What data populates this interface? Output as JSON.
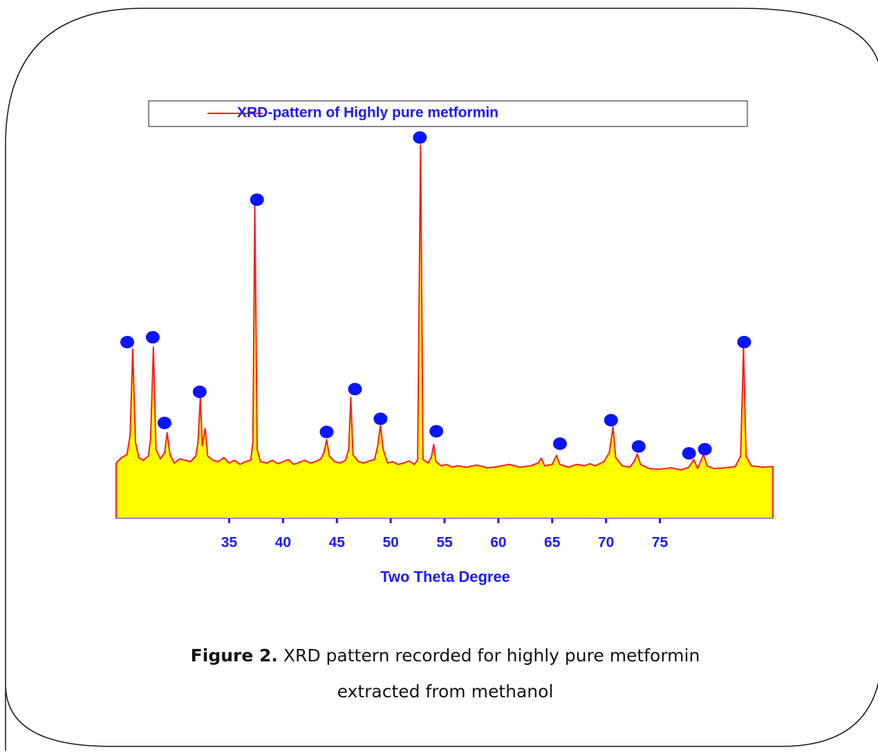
{
  "chart_data": {
    "type": "line",
    "legend_label": "XRD-pattern of Highly pure metformin",
    "x_label": "Two Theta Degree",
    "xlim": [
      24.5,
      85.5
    ],
    "xticks": [
      35,
      40,
      45,
      50,
      55,
      60,
      65,
      70,
      75
    ],
    "ylim": [
      0,
      560
    ],
    "fill_color": "#ffff00",
    "series": [
      {
        "name": "XRD-pattern of Highly pure metformin",
        "color": "#ff1a1a",
        "x": [
          24.5,
          25.0,
          25.5,
          25.8,
          26.04,
          26.3,
          26.6,
          27.0,
          27.5,
          27.7,
          27.96,
          28.2,
          28.6,
          29.0,
          29.24,
          29.5,
          29.9,
          30.4,
          30.9,
          31.4,
          31.9,
          32.1,
          32.32,
          32.5,
          32.77,
          33.0,
          33.5,
          34.0,
          34.5,
          35.0,
          35.5,
          36.0,
          36.5,
          37.0,
          37.2,
          37.38,
          37.6,
          37.9,
          38.5,
          39.0,
          39.5,
          40.0,
          40.5,
          41.0,
          41.5,
          42.0,
          42.5,
          43.0,
          43.5,
          43.8,
          44.05,
          44.3,
          44.8,
          45.3,
          45.8,
          46.1,
          46.29,
          46.5,
          47.0,
          47.5,
          48.0,
          48.5,
          48.8,
          49.05,
          49.3,
          49.7,
          50.2,
          50.7,
          51.2,
          51.7,
          52.2,
          52.5,
          52.77,
          53.0,
          53.5,
          53.8,
          53.99,
          54.2,
          54.7,
          55.2,
          55.7,
          56.2,
          57.0,
          58.0,
          59.0,
          60.0,
          61.0,
          62.0,
          63.0,
          63.7,
          63.99,
          64.3,
          65.0,
          65.4,
          65.7,
          66.5,
          67.3,
          68.0,
          68.5,
          69.0,
          69.8,
          70.3,
          70.65,
          70.9,
          71.5,
          72.2,
          72.6,
          72.9,
          73.2,
          74.0,
          75.0,
          76.0,
          77.0,
          77.7,
          78.15,
          78.5,
          79.05,
          79.4,
          80.0,
          81.0,
          82.0,
          82.5,
          82.77,
          83.0,
          83.5,
          84.5,
          85.5
        ],
        "values": [
          80,
          88,
          92,
          120,
          245,
          110,
          88,
          84,
          90,
          115,
          248,
          100,
          86,
          95,
          124,
          92,
          80,
          86,
          84,
          82,
          90,
          110,
          175,
          105,
          130,
          90,
          84,
          82,
          88,
          80,
          84,
          78,
          82,
          84,
          110,
          455,
          100,
          82,
          80,
          84,
          79,
          82,
          85,
          78,
          81,
          84,
          80,
          82,
          86,
          95,
          114,
          90,
          82,
          80,
          84,
          100,
          175,
          92,
          82,
          80,
          83,
          85,
          105,
          135,
          100,
          80,
          82,
          78,
          80,
          83,
          78,
          85,
          540,
          85,
          80,
          90,
          107,
          82,
          76,
          78,
          74,
          76,
          74,
          77,
          73,
          75,
          78,
          74,
          76,
          80,
          87,
          76,
          78,
          91,
          78,
          74,
          78,
          76,
          79,
          76,
          82,
          95,
          132,
          88,
          76,
          74,
          82,
          93,
          78,
          72,
          71,
          73,
          70,
          74,
          85,
          72,
          92,
          76,
          72,
          73,
          75,
          90,
          248,
          90,
          76,
          74,
          75
        ]
      }
    ],
    "peak_markers": {
      "color": "#0a14ff",
      "x": [
        25.53,
        27.9,
        28.99,
        32.26,
        37.58,
        44.05,
        46.68,
        49.05,
        52.71,
        54.24,
        65.72,
        70.46,
        73.03,
        77.71,
        79.18,
        82.83
      ],
      "values": [
        255,
        262,
        138,
        183,
        461,
        125,
        187,
        144,
        551,
        126,
        108,
        142,
        104,
        94,
        100,
        255
      ]
    }
  },
  "figure_caption": {
    "label": "Figure 2.",
    "lines": [
      "XRD pattern recorded for highly pure metformin",
      "extracted from methanol"
    ]
  }
}
